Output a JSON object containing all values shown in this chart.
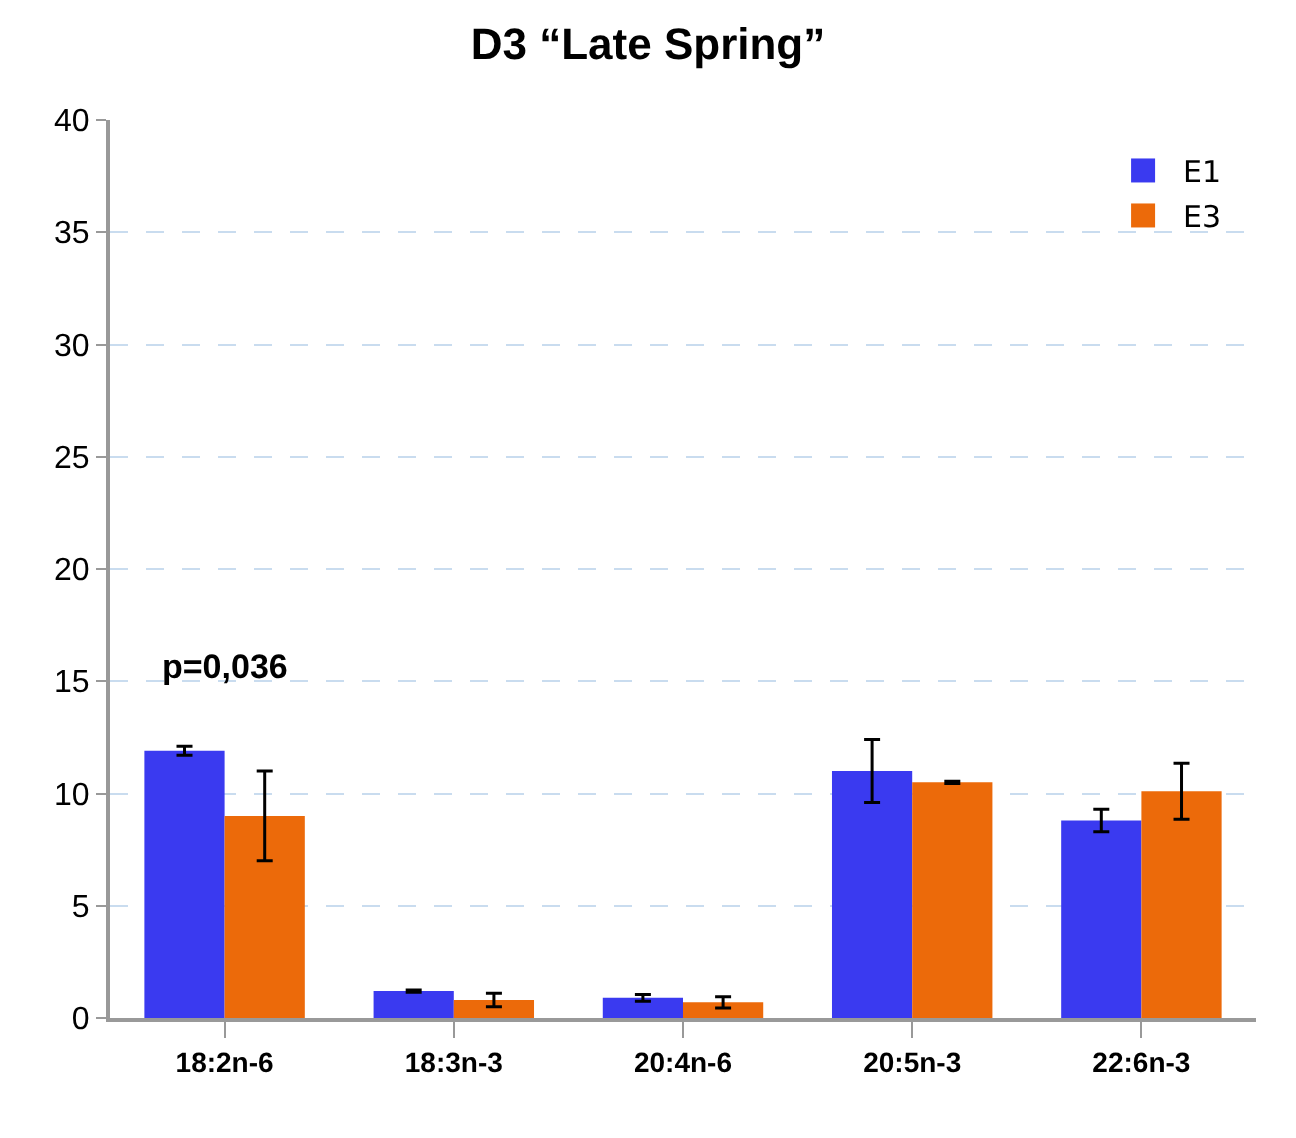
{
  "chart_data": {
    "type": "bar",
    "title": "D3 “Late Spring”",
    "categories": [
      "18:2n-6",
      "18:3n-3",
      "20:4n-6",
      "20:5n-3",
      "22:6n-3"
    ],
    "series": [
      {
        "name": "E1",
        "color": "#3a3af0",
        "values": [
          11.9,
          1.2,
          0.9,
          11.0,
          8.8
        ],
        "errors": [
          0.2,
          0.05,
          0.15,
          1.4,
          0.5
        ]
      },
      {
        "name": "E3",
        "color": "#ec6a0a",
        "values": [
          9.0,
          0.8,
          0.7,
          10.5,
          10.1
        ],
        "errors": [
          2.0,
          0.3,
          0.25,
          0.05,
          1.25
        ]
      }
    ],
    "ylim": [
      0,
      40
    ],
    "yticks": [
      0,
      5,
      10,
      15,
      20,
      25,
      30,
      35,
      40
    ],
    "grid": "y",
    "legend": "top right",
    "annotations": [
      "p=0,036"
    ]
  }
}
